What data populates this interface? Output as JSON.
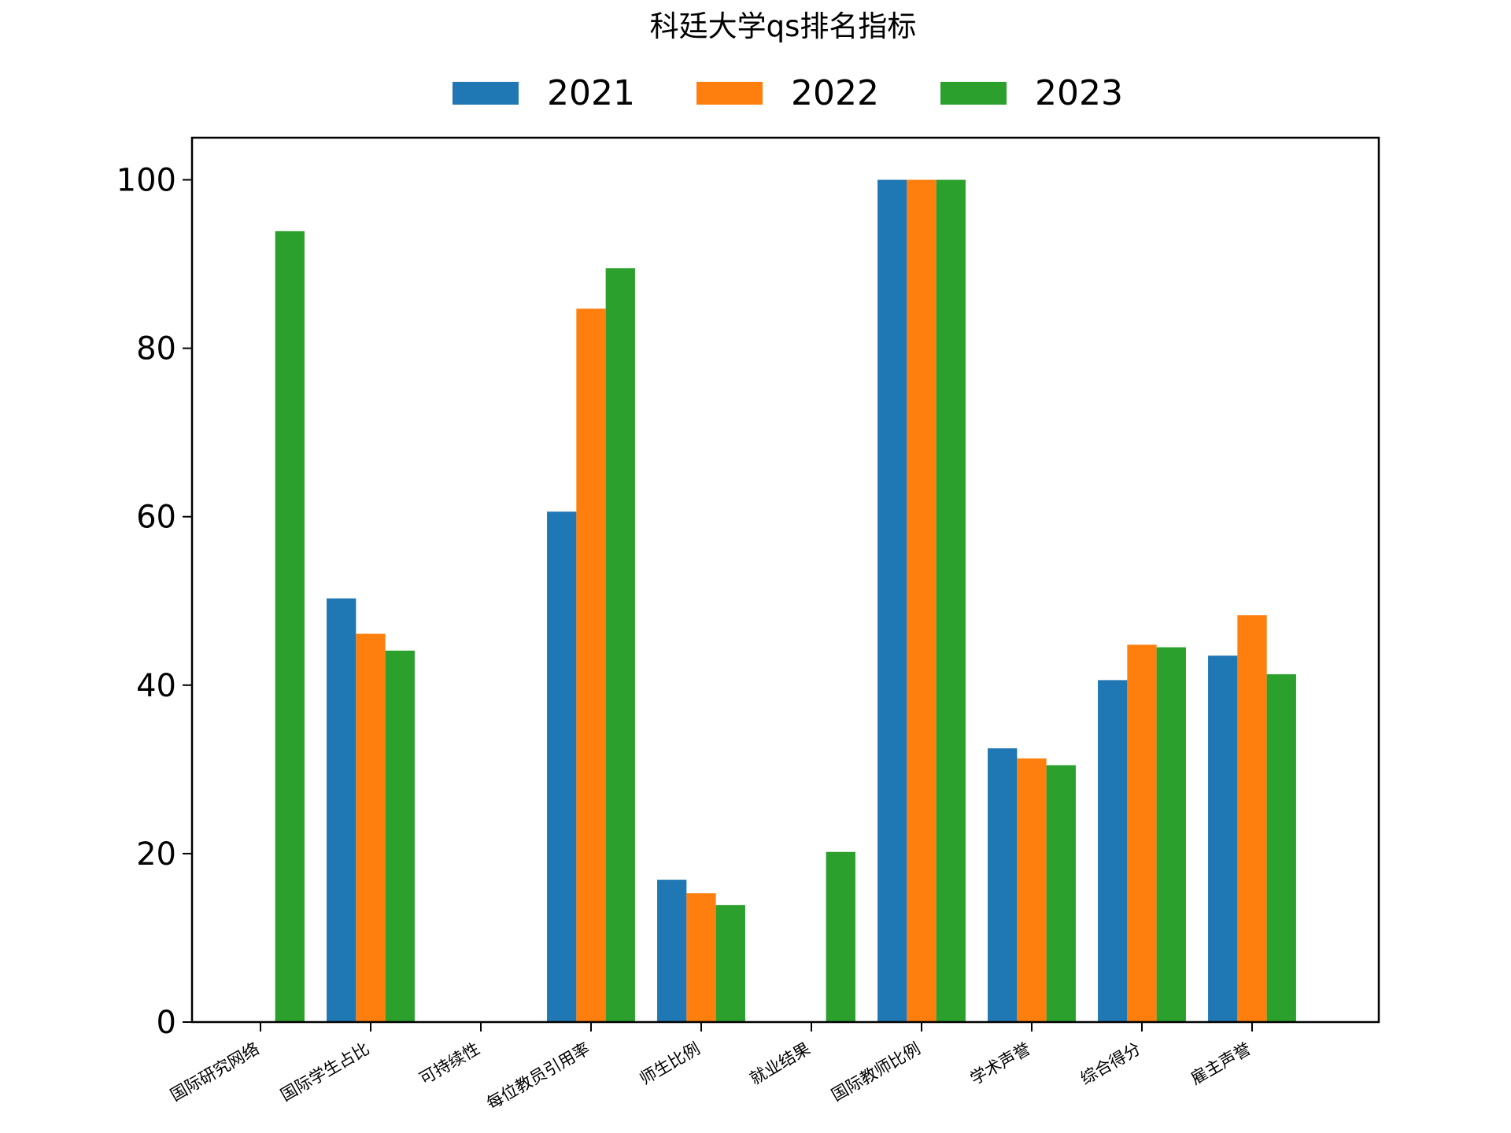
{
  "chart_data": {
    "type": "bar",
    "title": "科廷大学qs排名指标",
    "xlabel": "",
    "ylabel": "",
    "categories": [
      "国际研究网络",
      "国际学生占比",
      "可持续性",
      "每位教员引用率",
      "师生比例",
      "就业结果",
      "国际教师比例",
      "学术声誉",
      "综合得分",
      "雇主声誉"
    ],
    "series": [
      {
        "name": "2021",
        "color": "#1f77b4",
        "values": [
          0,
          50.3,
          0,
          60.6,
          16.9,
          0,
          100,
          32.5,
          40.6,
          43.5
        ]
      },
      {
        "name": "2022",
        "color": "#ff7f0e",
        "values": [
          0,
          46.1,
          0,
          84.7,
          15.3,
          0,
          100,
          31.3,
          44.8,
          48.3
        ]
      },
      {
        "name": "2023",
        "color": "#2ca02c",
        "values": [
          93.9,
          44.1,
          0,
          89.5,
          13.9,
          20.2,
          100,
          30.5,
          44.5,
          41.3
        ]
      }
    ],
    "ylim": [
      0,
      105
    ],
    "yticks": [
      "0",
      "20",
      "40",
      "60",
      "80",
      "100"
    ],
    "legend_position": "top-center",
    "grid": false
  }
}
